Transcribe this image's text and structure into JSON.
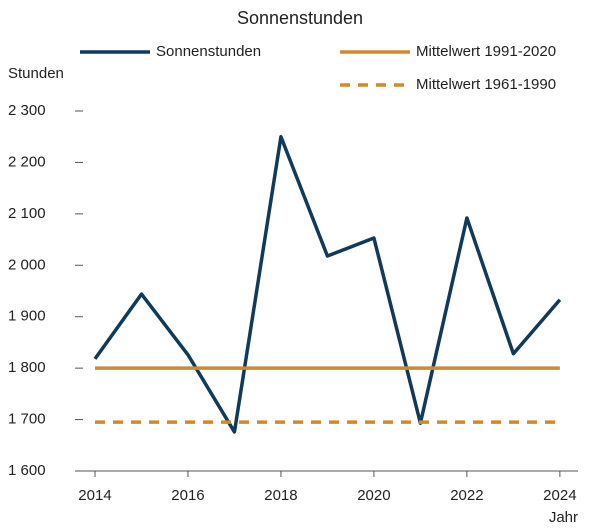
{
  "chart_data": {
    "type": "line",
    "title": "Sonnenstunden",
    "y_label": "Stunden",
    "x_label": "Jahr",
    "x": [
      2014,
      2015,
      2016,
      2017,
      2018,
      2019,
      2020,
      2021,
      2022,
      2023,
      2024
    ],
    "series": [
      {
        "name": "Sonnenstunden",
        "color": "#0f3a5c",
        "dash": false,
        "values": [
          1818,
          1944,
          1826,
          1676,
          2250,
          2018,
          2053,
          1693,
          2092,
          1828,
          1933
        ]
      },
      {
        "name": "Mittelwert 1991-2020",
        "color": "#d08a2a",
        "dash": false,
        "values": [
          1800,
          1800,
          1800,
          1800,
          1800,
          1800,
          1800,
          1800,
          1800,
          1800,
          1800
        ]
      },
      {
        "name": "Mittelwert 1961-1990",
        "color": "#d08a2a",
        "dash": true,
        "values": [
          1695,
          1695,
          1695,
          1695,
          1695,
          1695,
          1695,
          1695,
          1695,
          1695,
          1695
        ]
      }
    ],
    "xlim": [
      2013.57,
      2024.39
    ],
    "xticks": [
      2014,
      2016,
      2018,
      2020,
      2022,
      2024
    ],
    "ylim": [
      1600,
      2300
    ],
    "yticks": [
      {
        "value": 1600,
        "label": "1 600"
      },
      {
        "value": 1700,
        "label": "1 700"
      },
      {
        "value": 1800,
        "label": "1 800"
      },
      {
        "value": 1900,
        "label": "1 900"
      },
      {
        "value": 2000,
        "label": "2 000"
      },
      {
        "value": 2100,
        "label": "2 100"
      },
      {
        "value": 2200,
        "label": "2 200"
      },
      {
        "value": 2300,
        "label": "2 300"
      }
    ],
    "grid": false
  }
}
